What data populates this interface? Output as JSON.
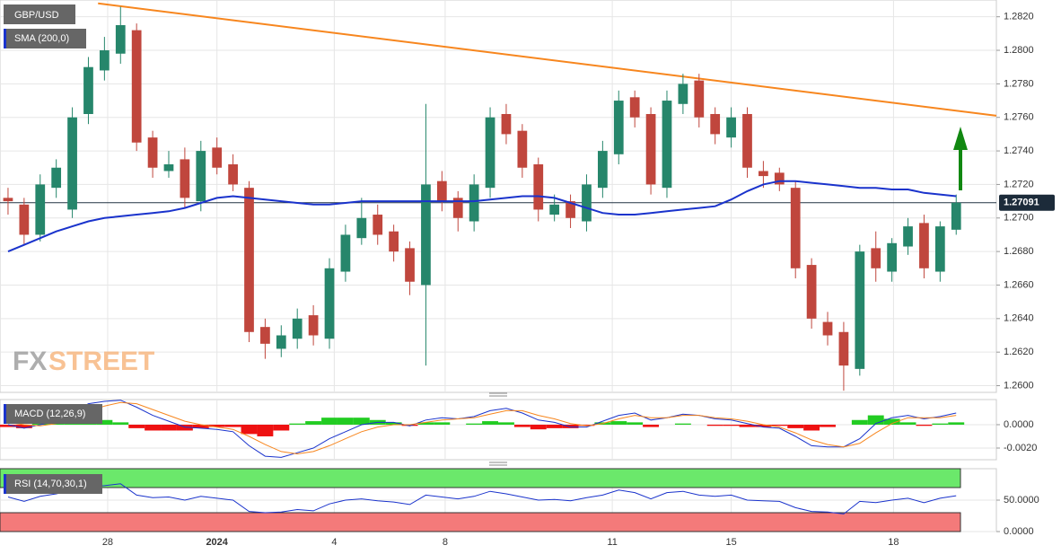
{
  "chart_data": [
    {
      "type": "candlestick",
      "title": "GBP/USD",
      "watermark": [
        "FX",
        "STREET"
      ],
      "xlim": [
        0,
        62
      ],
      "xticks": [
        {
          "value": 6.7,
          "label": "28"
        },
        {
          "value": 13.5,
          "label": "2024"
        },
        {
          "value": 20.8,
          "label": "4"
        },
        {
          "value": 27.7,
          "label": "8"
        },
        {
          "value": 38.1,
          "label": "11"
        },
        {
          "value": 45.5,
          "label": "15"
        },
        {
          "value": 55.6,
          "label": "18"
        }
      ],
      "ylim": [
        1.2596,
        1.283
      ],
      "yticks": [
        {
          "value": 1.26,
          "label": "1.2600"
        },
        {
          "value": 1.262,
          "label": "1.2620"
        },
        {
          "value": 1.264,
          "label": "1.2640"
        },
        {
          "value": 1.266,
          "label": "1.2660"
        },
        {
          "value": 1.268,
          "label": "1.2680"
        },
        {
          "value": 1.27,
          "label": "1.2700"
        },
        {
          "value": 1.272,
          "label": "1.2720"
        },
        {
          "value": 1.274,
          "label": "1.2740"
        },
        {
          "value": 1.276,
          "label": "1.2760"
        },
        {
          "value": 1.278,
          "label": "1.2780"
        },
        {
          "value": 1.28,
          "label": "1.2800"
        },
        {
          "value": 1.282,
          "label": "1.2820"
        }
      ],
      "grid": true,
      "up_color": "#26866b",
      "down_color": "#c0463d",
      "x": [
        0.5,
        1.5,
        2.5,
        3.5,
        4.5,
        5.5,
        6.5,
        7.5,
        8.5,
        9.5,
        10.5,
        11.5,
        12.5,
        13.5,
        14.5,
        15.5,
        16.5,
        17.5,
        18.5,
        19.5,
        20.5,
        21.5,
        22.5,
        23.5,
        24.5,
        25.5,
        26.5,
        27.5,
        28.5,
        29.5,
        30.5,
        31.5,
        32.5,
        33.5,
        34.5,
        35.5,
        36.5,
        37.5,
        38.5,
        39.5,
        40.5,
        41.5,
        42.5,
        43.5,
        44.5,
        45.5,
        46.5,
        47.5,
        48.5,
        49.5,
        50.5,
        51.5,
        52.5,
        53.5,
        54.5,
        55.5,
        56.5,
        57.5,
        58.5,
        59.5
      ],
      "open": [
        1.2712,
        1.2708,
        1.269,
        1.2718,
        1.2705,
        1.2762,
        1.2788,
        1.2798,
        1.2812,
        1.2748,
        1.2728,
        1.2735,
        1.271,
        1.2742,
        1.2732,
        1.2718,
        1.2635,
        1.2622,
        1.2628,
        1.2642,
        1.2628,
        1.2668,
        1.2688,
        1.2702,
        1.2692,
        1.2682,
        1.266,
        1.2722,
        1.2712,
        1.2698,
        1.2718,
        1.2762,
        1.2752,
        1.2732,
        1.2702,
        1.271,
        1.2698,
        1.2718,
        1.2738,
        1.2772,
        1.2762,
        1.2718,
        1.2768,
        1.2782,
        1.2762,
        1.2748,
        1.2762,
        1.2728,
        1.2727,
        1.2718,
        1.2672,
        1.2638,
        1.2632,
        1.261,
        1.2682,
        1.2668,
        1.2683,
        1.2697,
        1.2668,
        1.2693
      ],
      "high": [
        1.2718,
        1.2712,
        1.2726,
        1.2735,
        1.2766,
        1.2796,
        1.2808,
        1.2826,
        1.2816,
        1.2752,
        1.274,
        1.2742,
        1.2746,
        1.2748,
        1.2738,
        1.2722,
        1.264,
        1.2636,
        1.2646,
        1.2648,
        1.2676,
        1.2696,
        1.2712,
        1.2708,
        1.2696,
        1.2686,
        1.2768,
        1.2728,
        1.2716,
        1.2726,
        1.2766,
        1.2768,
        1.2756,
        1.2736,
        1.2714,
        1.2714,
        1.2726,
        1.2746,
        1.2776,
        1.2776,
        1.2766,
        1.2776,
        1.2786,
        1.2786,
        1.2766,
        1.2766,
        1.2766,
        1.2734,
        1.273,
        1.2722,
        1.2676,
        1.2644,
        1.2638,
        1.2684,
        1.2692,
        1.2688,
        1.27,
        1.2702,
        1.2698,
        1.2714
      ],
      "low": [
        1.2702,
        1.2684,
        1.2686,
        1.2712,
        1.27,
        1.2756,
        1.2782,
        1.2792,
        1.274,
        1.2724,
        1.2724,
        1.2706,
        1.2704,
        1.2726,
        1.2716,
        1.2626,
        1.2616,
        1.2617,
        1.2622,
        1.2624,
        1.2622,
        1.2662,
        1.2684,
        1.2684,
        1.2674,
        1.2654,
        1.2612,
        1.2704,
        1.2692,
        1.2692,
        1.2712,
        1.2744,
        1.2724,
        1.2698,
        1.2698,
        1.2694,
        1.2692,
        1.2712,
        1.2732,
        1.2754,
        1.2714,
        1.2712,
        1.2762,
        1.2754,
        1.2744,
        1.2742,
        1.2724,
        1.2718,
        1.2716,
        1.2664,
        1.2634,
        1.2624,
        1.2597,
        1.2606,
        1.2662,
        1.2662,
        1.2678,
        1.2664,
        1.2662,
        1.269
      ],
      "close": [
        1.271,
        1.269,
        1.272,
        1.273,
        1.276,
        1.279,
        1.28,
        1.2815,
        1.2745,
        1.273,
        1.2732,
        1.2712,
        1.274,
        1.273,
        1.272,
        1.2632,
        1.2625,
        1.263,
        1.264,
        1.263,
        1.267,
        1.269,
        1.27,
        1.269,
        1.268,
        1.2662,
        1.272,
        1.271,
        1.27,
        1.272,
        1.276,
        1.275,
        1.273,
        1.2705,
        1.2708,
        1.27,
        1.272,
        1.274,
        1.277,
        1.276,
        1.272,
        1.277,
        1.278,
        1.276,
        1.275,
        1.276,
        1.273,
        1.2725,
        1.272,
        1.267,
        1.264,
        1.263,
        1.2612,
        1.268,
        1.267,
        1.2685,
        1.2695,
        1.267,
        1.2695,
        1.27091
      ],
      "sma": {
        "name": "SMA (200,0)",
        "color": "#1a33cc",
        "values": [
          1.268,
          1.2684,
          1.2688,
          1.2692,
          1.2695,
          1.2698,
          1.27,
          1.2701,
          1.2702,
          1.2703,
          1.2704,
          1.2706,
          1.2709,
          1.2712,
          1.2713,
          1.2712,
          1.2711,
          1.271,
          1.2709,
          1.2708,
          1.2708,
          1.2709,
          1.271,
          1.271,
          1.271,
          1.271,
          1.271,
          1.271,
          1.271,
          1.271,
          1.2711,
          1.2712,
          1.2713,
          1.2713,
          1.2712,
          1.2709,
          1.2706,
          1.2703,
          1.2702,
          1.2702,
          1.2703,
          1.2704,
          1.2705,
          1.2706,
          1.2707,
          1.2711,
          1.2716,
          1.272,
          1.2722,
          1.2722,
          1.2721,
          1.272,
          1.2719,
          1.2718,
          1.2718,
          1.2717,
          1.2717,
          1.2715,
          1.2714,
          1.2713
        ]
      },
      "trendline": {
        "color": "#f7861e",
        "x": [
          6.1,
          62
        ],
        "values": [
          1.2828,
          1.2761
        ]
      },
      "last_price": 1.27091
    },
    {
      "type": "macd",
      "title": "MACD (12,26,9)",
      "ylim": [
        -0.003,
        0.00215
      ],
      "yticks": [
        {
          "value": 0,
          "label": "0.0000"
        },
        {
          "value": -0.002,
          "label": "-0.0020"
        }
      ],
      "x": [
        0.5,
        1.5,
        2.5,
        3.5,
        4.5,
        5.5,
        6.5,
        7.5,
        8.5,
        9.5,
        10.5,
        11.5,
        12.5,
        13.5,
        14.5,
        15.5,
        16.5,
        17.5,
        18.5,
        19.5,
        20.5,
        21.5,
        22.5,
        23.5,
        24.5,
        25.5,
        26.5,
        27.5,
        28.5,
        29.5,
        30.5,
        31.5,
        32.5,
        33.5,
        34.5,
        35.5,
        36.5,
        37.5,
        38.5,
        39.5,
        40.5,
        41.5,
        42.5,
        43.5,
        44.5,
        45.5,
        46.5,
        47.5,
        48.5,
        49.5,
        50.5,
        51.5,
        52.5,
        53.5,
        54.5,
        55.5,
        56.5,
        57.5,
        58.5,
        59.5
      ],
      "series": [
        {
          "color": "#1a33cc",
          "values": [
            0.0,
            -0.0003,
            0.0,
            0.0003,
            0.001,
            0.0018,
            0.002,
            0.0021,
            0.0015,
            0.0008,
            0.0003,
            -0.0002,
            -0.0003,
            -0.0004,
            -0.0006,
            -0.0018,
            -0.0027,
            -0.0028,
            -0.0024,
            -0.002,
            -0.0012,
            -0.0006,
            0.0,
            0.0002,
            0.0002,
            -0.0001,
            0.0004,
            0.0006,
            0.0005,
            0.0007,
            0.0012,
            0.0014,
            0.001,
            0.0004,
            0.0002,
            -0.0002,
            -0.0002,
            0.0003,
            0.0008,
            0.001,
            0.0004,
            0.0006,
            0.0009,
            0.0008,
            0.0005,
            0.0004,
            0.0001,
            -0.0002,
            -0.0003,
            -0.001,
            -0.0018,
            -0.0019,
            -0.0019,
            -0.0012,
            0.0001,
            0.0006,
            0.0008,
            0.0005,
            0.0007,
            0.001
          ]
        },
        {
          "color": "#f7861e",
          "values": [
            0.0002,
            0.0,
            -0.0001,
            0.0001,
            0.0005,
            0.0011,
            0.0016,
            0.0019,
            0.0018,
            0.0013,
            0.0008,
            0.0003,
            0.0,
            -0.0002,
            -0.0004,
            -0.001,
            -0.0017,
            -0.0023,
            -0.0025,
            -0.0023,
            -0.0018,
            -0.0012,
            -0.0006,
            -0.0002,
            0.0,
            0.0,
            0.0002,
            0.0004,
            0.0005,
            0.0006,
            0.0009,
            0.0012,
            0.0012,
            0.0008,
            0.0005,
            0.0001,
            -0.0001,
            0.0001,
            0.0005,
            0.0008,
            0.0006,
            0.0006,
            0.0008,
            0.0008,
            0.0006,
            0.0005,
            0.0003,
            0.0,
            -0.0002,
            -0.0007,
            -0.0013,
            -0.0017,
            -0.0019,
            -0.0016,
            -0.0007,
            0.0001,
            0.0006,
            0.0006,
            0.0006,
            0.0008
          ]
        }
      ],
      "histogram": {
        "colors": [
          "#22cc22",
          "#ee1111"
        ],
        "values": [
          -0.0002,
          -0.0003,
          0.0001,
          0.0002,
          0.0005,
          0.0007,
          0.0004,
          0.0002,
          -0.0003,
          -0.0005,
          -0.0005,
          -0.0005,
          -0.0003,
          -0.0002,
          -0.0002,
          -0.0008,
          -0.001,
          -0.0005,
          0.0001,
          0.0003,
          0.0006,
          0.0006,
          0.0006,
          0.0004,
          0.0002,
          -0.0001,
          0.0002,
          0.0002,
          0.0,
          0.0001,
          0.0003,
          0.0002,
          -0.0002,
          -0.0004,
          -0.0003,
          -0.0003,
          -0.0001,
          0.0002,
          0.0003,
          0.0002,
          -0.0002,
          0.0,
          0.0001,
          0.0,
          -0.0001,
          -0.0001,
          -0.0002,
          -0.0002,
          -0.0001,
          -0.0003,
          -0.0005,
          -0.0002,
          0.0,
          0.0004,
          0.0008,
          0.0005,
          0.0002,
          -0.0001,
          0.0001,
          0.0002
        ]
      }
    },
    {
      "type": "rsi",
      "title": "RSI (14,70,30,1)",
      "ylim": [
        0,
        100
      ],
      "yticks": [
        {
          "value": 50,
          "label": "50.0000"
        },
        {
          "value": 0,
          "label": "0.0000"
        }
      ],
      "overbought": 70,
      "oversold": 30,
      "overbought_color": "#6be86b",
      "oversold_color": "#f47a7a",
      "x": [
        0.5,
        1.5,
        2.5,
        3.5,
        4.5,
        5.5,
        6.5,
        7.5,
        8.5,
        9.5,
        10.5,
        11.5,
        12.5,
        13.5,
        14.5,
        15.5,
        16.5,
        17.5,
        18.5,
        19.5,
        20.5,
        21.5,
        22.5,
        23.5,
        24.5,
        25.5,
        26.5,
        27.5,
        28.5,
        29.5,
        30.5,
        31.5,
        32.5,
        33.5,
        34.5,
        35.5,
        36.5,
        37.5,
        38.5,
        39.5,
        40.5,
        41.5,
        42.5,
        43.5,
        44.5,
        45.5,
        46.5,
        47.5,
        48.5,
        49.5,
        50.5,
        51.5,
        52.5,
        53.5,
        54.5,
        55.5,
        56.5,
        57.5,
        58.5,
        59.5
      ],
      "series": [
        {
          "color": "#1a33cc",
          "values": [
            55,
            48,
            56,
            60,
            66,
            72,
            73,
            76,
            58,
            54,
            55,
            50,
            56,
            53,
            50,
            32,
            30,
            31,
            35,
            33,
            44,
            50,
            52,
            49,
            47,
            43,
            58,
            55,
            52,
            56,
            64,
            60,
            55,
            50,
            51,
            49,
            54,
            58,
            66,
            62,
            52,
            62,
            64,
            58,
            56,
            58,
            50,
            49,
            48,
            38,
            32,
            31,
            28,
            48,
            46,
            50,
            53,
            46,
            53,
            57
          ]
        }
      ]
    }
  ]
}
